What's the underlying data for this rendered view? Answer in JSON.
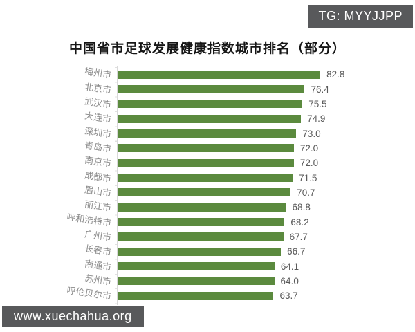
{
  "badges": {
    "top_right": "TG: MYYJJPP",
    "bottom_left": "www.xuechahua.org"
  },
  "colors": {
    "bar": "#5b8a3e",
    "badge_bg": "#58595b",
    "category_label": "#8c8c8c",
    "value_label": "#595959",
    "axis": "#d9d9d9",
    "title": "#161616",
    "background": "#ffffff"
  },
  "chart_data": {
    "type": "bar",
    "orientation": "horizontal",
    "title": "中国省市足球发展健康指数城市排名（部分）",
    "categories": [
      "梅州市",
      "北京市",
      "武汉市",
      "大连市",
      "深圳市",
      "青岛市",
      "南京市",
      "成都市",
      "眉山市",
      "丽江市",
      "呼和浩特市",
      "广州市",
      "长春市",
      "南通市",
      "苏州市",
      "呼伦贝尔市"
    ],
    "values": [
      82.8,
      76.4,
      75.5,
      74.9,
      73.0,
      72.0,
      72.0,
      71.5,
      70.7,
      68.8,
      68.2,
      67.7,
      66.7,
      64.1,
      64.0,
      63.7
    ],
    "xlabel": "",
    "ylabel": "",
    "xlim": [
      0,
      90
    ],
    "grid": false,
    "legend": false,
    "value_labels": true,
    "value_label_format": "one_decimal"
  }
}
